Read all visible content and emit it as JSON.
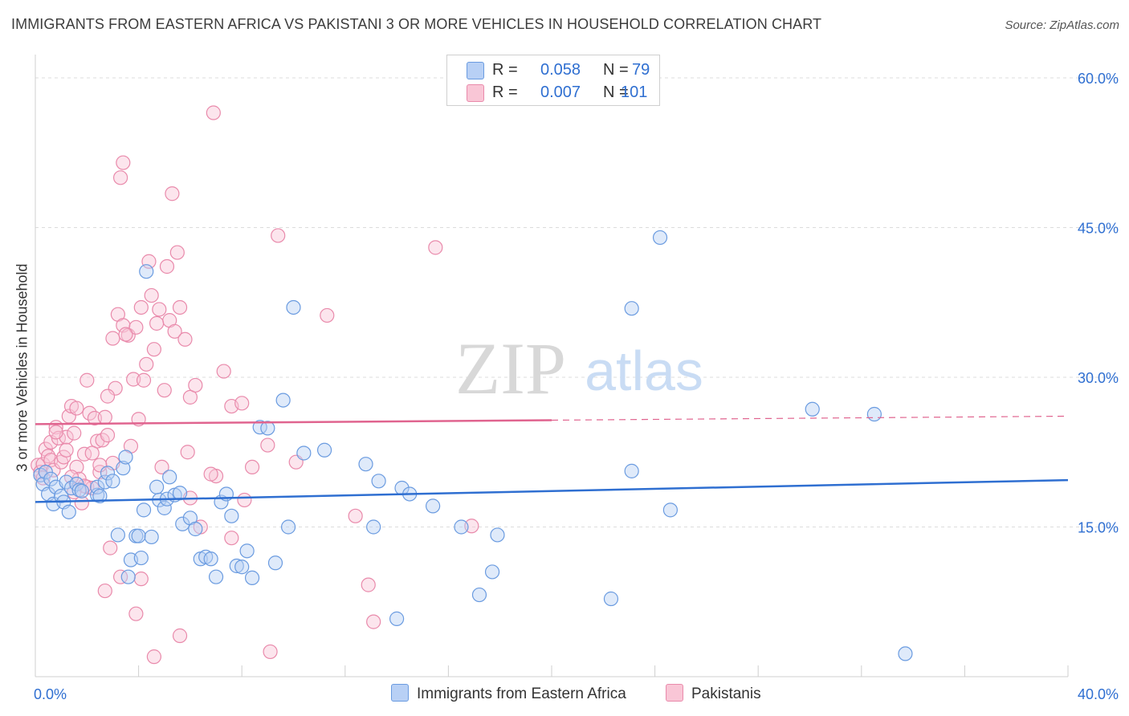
{
  "title": "IMMIGRANTS FROM EASTERN AFRICA VS PAKISTANI 3 OR MORE VEHICLES IN HOUSEHOLD CORRELATION CHART",
  "source": "Source: ZipAtlas.com",
  "watermark": {
    "zip": "ZIP",
    "atlas": "atlas"
  },
  "legend": {
    "rows": [
      {
        "r_label": "R =",
        "r_value": "0.058",
        "n_label": "N =",
        "n_value": "79"
      },
      {
        "r_label": "R =",
        "r_value": "0.007",
        "n_label": "N =",
        "n_value": "101"
      }
    ]
  },
  "bottom_legend": {
    "series1": "Immigrants from Eastern Africa",
    "series2": "Pakistanis"
  },
  "colors": {
    "blue_fill": "#b8d0f5",
    "blue_stroke": "#6a9be0",
    "blue_line": "#2f6fd1",
    "pink_fill": "#f9c6d6",
    "pink_stroke": "#e98aab",
    "pink_line": "#e0648f",
    "tick_text": "#2f6fd1"
  },
  "chart_data": {
    "type": "scatter",
    "title": "IMMIGRANTS FROM EASTERN AFRICA VS PAKISTANI 3 OR MORE VEHICLES IN HOUSEHOLD CORRELATION CHART",
    "xlabel": "",
    "ylabel": "3 or more Vehicles in Household",
    "xlim": [
      0,
      40
    ],
    "ylim": [
      0,
      60
    ],
    "x_tick_labels": [
      {
        "value": 0,
        "label": "0.0%"
      },
      {
        "value": 40,
        "label": "40.0%"
      }
    ],
    "y_tick_labels": [
      {
        "value": 15,
        "label": "15.0%"
      },
      {
        "value": 30,
        "label": "30.0%"
      },
      {
        "value": 45,
        "label": "45.0%"
      },
      {
        "value": 60,
        "label": "60.0%"
      }
    ],
    "series": [
      {
        "name": "Immigrants from Eastern Africa",
        "color": "#6a9be0",
        "trend": {
          "x": [
            0,
            40
          ],
          "y": [
            17.5,
            19.7
          ]
        },
        "points": [
          [
            0.2,
            20.2
          ],
          [
            0.3,
            19.3
          ],
          [
            0.4,
            20.5
          ],
          [
            0.5,
            18.3
          ],
          [
            0.6,
            19.8
          ],
          [
            0.7,
            17.3
          ],
          [
            0.8,
            19.0
          ],
          [
            1.0,
            18.1
          ],
          [
            1.1,
            17.5
          ],
          [
            1.2,
            19.5
          ],
          [
            1.3,
            16.5
          ],
          [
            1.4,
            18.9
          ],
          [
            1.6,
            19.3
          ],
          [
            1.7,
            18.7
          ],
          [
            1.8,
            18.6
          ],
          [
            2.4,
            18.2
          ],
          [
            2.4,
            19.0
          ],
          [
            2.5,
            18.1
          ],
          [
            2.7,
            19.5
          ],
          [
            2.8,
            20.4
          ],
          [
            3.0,
            19.6
          ],
          [
            3.2,
            14.2
          ],
          [
            3.4,
            20.9
          ],
          [
            3.5,
            22.0
          ],
          [
            3.6,
            10.0
          ],
          [
            3.7,
            11.7
          ],
          [
            3.9,
            14.1
          ],
          [
            4.0,
            14.1
          ],
          [
            4.1,
            11.9
          ],
          [
            4.2,
            16.7
          ],
          [
            4.3,
            40.6
          ],
          [
            4.5,
            14.0
          ],
          [
            4.7,
            19.0
          ],
          [
            4.8,
            17.7
          ],
          [
            5.0,
            16.9
          ],
          [
            5.1,
            17.8
          ],
          [
            5.2,
            20.0
          ],
          [
            5.4,
            18.2
          ],
          [
            5.6,
            18.4
          ],
          [
            5.7,
            15.3
          ],
          [
            6.0,
            15.9
          ],
          [
            6.2,
            14.8
          ],
          [
            6.4,
            11.8
          ],
          [
            6.6,
            12.0
          ],
          [
            6.8,
            11.8
          ],
          [
            7.0,
            10.0
          ],
          [
            7.2,
            17.5
          ],
          [
            7.4,
            18.3
          ],
          [
            7.6,
            16.1
          ],
          [
            7.8,
            11.1
          ],
          [
            8.0,
            11.0
          ],
          [
            8.2,
            12.6
          ],
          [
            8.4,
            9.9
          ],
          [
            8.7,
            25.0
          ],
          [
            9.0,
            24.9
          ],
          [
            9.3,
            11.4
          ],
          [
            9.6,
            27.7
          ],
          [
            9.8,
            15.0
          ],
          [
            10.0,
            37.0
          ],
          [
            10.4,
            22.4
          ],
          [
            11.2,
            22.7
          ],
          [
            12.8,
            21.3
          ],
          [
            13.1,
            15.0
          ],
          [
            13.3,
            19.6
          ],
          [
            14.0,
            5.8
          ],
          [
            14.2,
            18.9
          ],
          [
            14.5,
            18.3
          ],
          [
            15.4,
            17.1
          ],
          [
            16.5,
            15.0
          ],
          [
            17.2,
            8.2
          ],
          [
            17.7,
            10.5
          ],
          [
            17.9,
            14.2
          ],
          [
            22.3,
            7.8
          ],
          [
            23.1,
            36.9
          ],
          [
            23.1,
            20.6
          ],
          [
            24.2,
            44.0
          ],
          [
            24.6,
            16.7
          ],
          [
            30.1,
            26.8
          ],
          [
            32.5,
            26.3
          ],
          [
            33.7,
            2.3
          ]
        ]
      },
      {
        "name": "Pakistanis",
        "color": "#e98aab",
        "trend": {
          "x": [
            0,
            40
          ],
          "y": [
            25.3,
            26.1
          ]
        },
        "points": [
          [
            0.1,
            21.2
          ],
          [
            0.2,
            20.5
          ],
          [
            0.3,
            19.9
          ],
          [
            0.3,
            21.3
          ],
          [
            0.4,
            22.8
          ],
          [
            0.5,
            22.1
          ],
          [
            0.6,
            21.7
          ],
          [
            0.6,
            23.5
          ],
          [
            0.7,
            20.7
          ],
          [
            0.8,
            25.0
          ],
          [
            0.9,
            23.9
          ],
          [
            1.0,
            21.5
          ],
          [
            1.1,
            22.0
          ],
          [
            1.2,
            24.0
          ],
          [
            1.3,
            26.1
          ],
          [
            1.4,
            27.1
          ],
          [
            1.5,
            24.4
          ],
          [
            1.6,
            21.0
          ],
          [
            1.7,
            19.8
          ],
          [
            1.8,
            17.4
          ],
          [
            1.9,
            22.3
          ],
          [
            2.0,
            19.0
          ],
          [
            2.1,
            26.4
          ],
          [
            2.2,
            18.9
          ],
          [
            2.3,
            25.9
          ],
          [
            2.4,
            23.6
          ],
          [
            2.5,
            20.5
          ],
          [
            2.6,
            23.7
          ],
          [
            2.7,
            26.0
          ],
          [
            2.8,
            24.2
          ],
          [
            3.0,
            33.9
          ],
          [
            3.0,
            21.4
          ],
          [
            3.1,
            28.9
          ],
          [
            3.2,
            36.3
          ],
          [
            3.4,
            35.2
          ],
          [
            3.6,
            34.2
          ],
          [
            3.8,
            29.8
          ],
          [
            4.0,
            25.8
          ],
          [
            4.2,
            29.7
          ],
          [
            4.4,
            41.6
          ],
          [
            4.5,
            38.2
          ],
          [
            4.6,
            32.8
          ],
          [
            4.8,
            36.8
          ],
          [
            5.0,
            28.7
          ],
          [
            5.2,
            35.7
          ],
          [
            5.4,
            34.6
          ],
          [
            5.6,
            37.0
          ],
          [
            5.8,
            33.8
          ],
          [
            6.0,
            28.0
          ],
          [
            6.2,
            29.2
          ],
          [
            3.3,
            50.0
          ],
          [
            3.4,
            51.5
          ],
          [
            3.9,
            35.0
          ],
          [
            4.1,
            37.0
          ],
          [
            4.3,
            31.3
          ],
          [
            4.7,
            35.4
          ],
          [
            5.1,
            41.1
          ],
          [
            5.3,
            48.4
          ],
          [
            5.5,
            42.5
          ],
          [
            6.9,
            56.5
          ],
          [
            7.3,
            30.6
          ],
          [
            7.6,
            27.1
          ],
          [
            8.0,
            27.4
          ],
          [
            8.4,
            21.0
          ],
          [
            9.0,
            23.2
          ],
          [
            9.4,
            44.2
          ],
          [
            10.1,
            21.5
          ],
          [
            11.3,
            36.2
          ],
          [
            12.4,
            16.1
          ],
          [
            12.9,
            9.2
          ],
          [
            13.1,
            5.5
          ],
          [
            15.5,
            43.0
          ],
          [
            16.9,
            15.1
          ],
          [
            2.7,
            8.6
          ],
          [
            2.9,
            12.9
          ],
          [
            3.3,
            10.0
          ],
          [
            3.9,
            6.3
          ],
          [
            4.1,
            9.8
          ],
          [
            4.6,
            2.0
          ],
          [
            5.6,
            4.1
          ],
          [
            6.0,
            17.9
          ],
          [
            6.4,
            15.0
          ],
          [
            7.0,
            20.1
          ],
          [
            7.6,
            13.9
          ],
          [
            8.1,
            17.7
          ],
          [
            9.1,
            2.5
          ],
          [
            1.9,
            19.1
          ],
          [
            2.2,
            22.4
          ],
          [
            1.5,
            18.5
          ],
          [
            1.2,
            22.7
          ],
          [
            0.8,
            24.5
          ],
          [
            1.6,
            26.9
          ],
          [
            2.8,
            28.1
          ],
          [
            3.7,
            23.1
          ],
          [
            4.9,
            21.0
          ],
          [
            5.9,
            22.5
          ],
          [
            6.8,
            20.3
          ],
          [
            2.0,
            29.7
          ],
          [
            3.5,
            34.3
          ],
          [
            2.5,
            21.2
          ],
          [
            1.4,
            20.0
          ]
        ]
      }
    ]
  }
}
